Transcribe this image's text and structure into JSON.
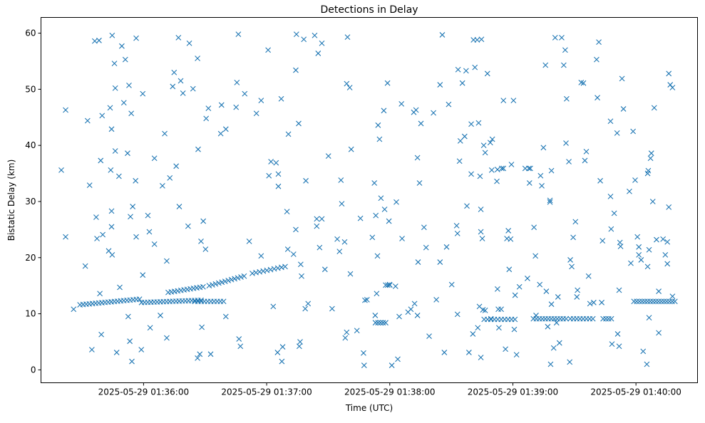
{
  "chart_data": {
    "type": "scatter",
    "title": "Detections in Delay",
    "xlabel": "Time (UTC)",
    "ylabel": "Bistatic Delay (km)",
    "x_unit": "seconds after 2025-05-29 01:35:00",
    "xlim": [
      10,
      330
    ],
    "ylim": [
      -2.3,
      62.8
    ],
    "grid": false,
    "marker": "x",
    "color": "#1f77b4",
    "xticks": [
      {
        "value": 60,
        "label": "2025-05-29 01:36:00"
      },
      {
        "value": 120,
        "label": "2025-05-29 01:37:00"
      },
      {
        "value": 180,
        "label": "2025-05-29 01:38:00"
      },
      {
        "value": 240,
        "label": "2025-05-29 01:39:00"
      },
      {
        "value": 300,
        "label": "2025-05-29 01:40:00"
      }
    ],
    "yticks": [
      {
        "value": 0,
        "label": "0"
      },
      {
        "value": 10,
        "label": "10"
      },
      {
        "value": 20,
        "label": "20"
      },
      {
        "value": 30,
        "label": "30"
      },
      {
        "value": 40,
        "label": "40"
      },
      {
        "value": 50,
        "label": "50"
      },
      {
        "value": 60,
        "label": "60"
      }
    ],
    "points": [
      [
        19.9,
        35.6
      ],
      [
        22.0,
        46.3
      ],
      [
        22.0,
        23.7
      ],
      [
        25.9,
        10.8
      ],
      [
        31.6,
        18.5
      ],
      [
        32.7,
        44.4
      ],
      [
        33.7,
        32.9
      ],
      [
        34.8,
        3.6
      ],
      [
        36.2,
        58.6
      ],
      [
        36.9,
        27.2
      ],
      [
        37.3,
        23.4
      ],
      [
        38.3,
        58.7
      ],
      [
        38.7,
        13.6
      ],
      [
        39.1,
        37.3
      ],
      [
        39.4,
        6.3
      ],
      [
        39.8,
        45.3
      ],
      [
        40.1,
        24.1
      ],
      [
        43.0,
        21.2
      ],
      [
        43.7,
        46.7
      ],
      [
        44.0,
        35.6
      ],
      [
        44.4,
        42.9
      ],
      [
        44.4,
        28.3
      ],
      [
        44.4,
        25.5
      ],
      [
        44.7,
        20.5
      ],
      [
        44.7,
        59.6
      ],
      [
        45.8,
        54.6
      ],
      [
        46.2,
        50.2
      ],
      [
        46.2,
        39.0
      ],
      [
        46.9,
        3.1
      ],
      [
        48.0,
        34.5
      ],
      [
        48.4,
        14.7
      ],
      [
        49.4,
        57.7
      ],
      [
        50.4,
        47.6
      ],
      [
        51.1,
        55.3
      ],
      [
        52.2,
        38.6
      ],
      [
        52.5,
        9.5
      ],
      [
        52.9,
        50.7
      ],
      [
        53.3,
        5.1
      ],
      [
        53.6,
        27.3
      ],
      [
        54.0,
        45.7
      ],
      [
        54.3,
        1.5
      ],
      [
        54.7,
        29.1
      ],
      [
        56.1,
        33.7
      ],
      [
        56.4,
        59.1
      ],
      [
        56.4,
        23.7
      ],
      [
        58.9,
        3.6
      ],
      [
        59.6,
        16.9
      ],
      [
        59.6,
        49.2
      ],
      [
        62.1,
        27.5
      ],
      [
        62.8,
        24.6
      ],
      [
        63.2,
        7.5
      ],
      [
        65.3,
        37.7
      ],
      [
        65.3,
        22.4
      ],
      [
        68.2,
        9.7
      ],
      [
        69.2,
        32.8
      ],
      [
        70.3,
        42.1
      ],
      [
        71.3,
        5.7
      ],
      [
        71.3,
        19.4
      ],
      [
        72.8,
        34.2
      ],
      [
        74.2,
        50.5
      ],
      [
        74.9,
        53.0
      ],
      [
        75.9,
        36.3
      ],
      [
        77.0,
        59.2
      ],
      [
        77.4,
        29.1
      ],
      [
        78.1,
        51.5
      ],
      [
        79.2,
        49.3
      ],
      [
        81.7,
        25.6
      ],
      [
        82.3,
        58.2
      ],
      [
        84.1,
        50.1
      ],
      [
        86.3,
        55.5
      ],
      [
        86.6,
        39.3
      ],
      [
        86.3,
        2.1
      ],
      [
        87.4,
        2.8
      ],
      [
        88.0,
        22.9
      ],
      [
        88.4,
        7.6
      ],
      [
        89.1,
        26.5
      ],
      [
        90.2,
        21.5
      ],
      [
        90.5,
        44.8
      ],
      [
        91.6,
        46.6
      ],
      [
        92.7,
        2.8
      ],
      [
        97.6,
        42.1
      ],
      [
        98.0,
        47.2
      ],
      [
        100.1,
        42.9
      ],
      [
        100.1,
        9.5
      ],
      [
        105.1,
        46.8
      ],
      [
        105.5,
        51.2
      ],
      [
        106.2,
        59.8
      ],
      [
        106.5,
        5.5
      ],
      [
        107.2,
        4.2
      ],
      [
        109.3,
        49.2
      ],
      [
        111.5,
        22.9
      ],
      [
        115.0,
        45.7
      ],
      [
        117.3,
        48.0
      ],
      [
        117.3,
        20.3
      ],
      [
        120.7,
        57.0
      ],
      [
        121.1,
        34.6
      ],
      [
        122.1,
        37.1
      ],
      [
        123.2,
        11.3
      ],
      [
        124.6,
        36.9
      ],
      [
        125.3,
        3.1
      ],
      [
        125.7,
        34.9
      ],
      [
        125.7,
        32.7
      ],
      [
        127.1,
        48.3
      ],
      [
        127.4,
        1.5
      ],
      [
        127.8,
        4.1
      ],
      [
        129.9,
        28.2
      ],
      [
        130.3,
        21.5
      ],
      [
        130.6,
        42.0
      ],
      [
        133.1,
        20.6
      ],
      [
        134.2,
        25.0
      ],
      [
        134.2,
        53.4
      ],
      [
        134.5,
        59.8
      ],
      [
        135.6,
        43.9
      ],
      [
        135.9,
        4.2
      ],
      [
        136.3,
        5.0
      ],
      [
        136.6,
        18.8
      ],
      [
        137.0,
        16.7
      ],
      [
        138.1,
        58.9
      ],
      [
        138.8,
        10.9
      ],
      [
        139.1,
        33.7
      ],
      [
        140.2,
        11.8
      ],
      [
        143.4,
        59.6
      ],
      [
        144.4,
        25.6
      ],
      [
        144.4,
        26.9
      ],
      [
        145.1,
        56.4
      ],
      [
        145.8,
        21.8
      ],
      [
        146.9,
        58.2
      ],
      [
        146.9,
        26.9
      ],
      [
        148.4,
        17.9
      ],
      [
        150.1,
        38.1
      ],
      [
        151.9,
        10.9
      ],
      [
        154.4,
        23.3
      ],
      [
        155.5,
        21.1
      ],
      [
        156.2,
        33.8
      ],
      [
        156.6,
        29.6
      ],
      [
        158.0,
        22.8
      ],
      [
        158.3,
        5.7
      ],
      [
        159.0,
        6.7
      ],
      [
        159.4,
        59.3
      ],
      [
        159.0,
        51.0
      ],
      [
        160.5,
        50.3
      ],
      [
        160.8,
        17.1
      ],
      [
        161.2,
        39.3
      ],
      [
        164.0,
        7.0
      ],
      [
        165.7,
        27.0
      ],
      [
        167.2,
        3.0
      ],
      [
        167.5,
        0.8
      ],
      [
        167.9,
        12.4
      ],
      [
        168.9,
        12.5
      ],
      [
        171.5,
        23.6
      ],
      [
        172.5,
        33.3
      ],
      [
        172.9,
        9.7
      ],
      [
        173.2,
        27.5
      ],
      [
        173.6,
        13.6
      ],
      [
        174.0,
        20.3
      ],
      [
        174.3,
        43.6
      ],
      [
        175.0,
        41.1
      ],
      [
        175.7,
        30.6
      ],
      [
        177.1,
        46.2
      ],
      [
        177.5,
        28.6
      ],
      [
        178.9,
        51.1
      ],
      [
        179.6,
        26.5
      ],
      [
        179.9,
        15.2
      ],
      [
        181.0,
        0.8
      ],
      [
        182.8,
        14.9
      ],
      [
        183.2,
        29.9
      ],
      [
        183.9,
        1.9
      ],
      [
        184.6,
        9.5
      ],
      [
        185.7,
        47.4
      ],
      [
        186.0,
        23.4
      ],
      [
        188.9,
        10.3
      ],
      [
        190.3,
        10.8
      ],
      [
        191.7,
        45.9
      ],
      [
        192.1,
        11.8
      ],
      [
        192.8,
        46.3
      ],
      [
        193.5,
        37.8
      ],
      [
        193.5,
        9.7
      ],
      [
        193.8,
        19.2
      ],
      [
        194.5,
        33.3
      ],
      [
        195.2,
        43.9
      ],
      [
        196.7,
        25.4
      ],
      [
        197.7,
        21.8
      ],
      [
        199.2,
        6.0
      ],
      [
        201.3,
        45.8
      ],
      [
        202.7,
        12.5
      ],
      [
        204.5,
        50.8
      ],
      [
        204.5,
        19.2
      ],
      [
        205.6,
        59.7
      ],
      [
        206.6,
        3.1
      ],
      [
        207.7,
        21.9
      ],
      [
        208.7,
        47.3
      ],
      [
        210.2,
        15.2
      ],
      [
        212.6,
        25.7
      ],
      [
        213.0,
        24.3
      ],
      [
        213.0,
        9.9
      ],
      [
        213.3,
        53.5
      ],
      [
        214.0,
        37.2
      ],
      [
        214.4,
        40.8
      ],
      [
        215.4,
        51.1
      ],
      [
        216.5,
        41.6
      ],
      [
        217.2,
        53.3
      ],
      [
        217.6,
        29.2
      ],
      [
        218.6,
        3.1
      ],
      [
        219.7,
        34.9
      ],
      [
        219.7,
        43.8
      ],
      [
        220.5,
        6.4
      ],
      [
        220.8,
        58.8
      ],
      [
        221.5,
        53.9
      ],
      [
        222.6,
        58.8
      ],
      [
        222.9,
        7.5
      ],
      [
        223.3,
        44.0
      ],
      [
        223.7,
        11.3
      ],
      [
        224.0,
        34.5
      ],
      [
        224.4,
        28.6
      ],
      [
        224.4,
        2.2
      ],
      [
        224.4,
        24.6
      ],
      [
        224.7,
        58.9
      ],
      [
        225.1,
        23.4
      ],
      [
        225.4,
        10.7
      ],
      [
        225.8,
        40.0
      ],
      [
        226.5,
        38.7
      ],
      [
        226.5,
        10.6
      ],
      [
        227.6,
        52.8
      ],
      [
        229.0,
        40.5
      ],
      [
        229.3,
        9.1
      ],
      [
        229.7,
        35.6
      ],
      [
        230.0,
        41.1
      ],
      [
        232.2,
        33.6
      ],
      [
        232.5,
        14.4
      ],
      [
        232.5,
        35.7
      ],
      [
        232.9,
        10.8
      ],
      [
        233.2,
        7.5
      ],
      [
        234.3,
        10.8
      ],
      [
        234.6,
        35.9
      ],
      [
        235.4,
        48.0
      ],
      [
        235.4,
        35.9
      ],
      [
        236.4,
        3.7
      ],
      [
        237.1,
        23.4
      ],
      [
        237.8,
        24.8
      ],
      [
        238.2,
        17.9
      ],
      [
        238.9,
        23.3
      ],
      [
        239.3,
        36.6
      ],
      [
        240.3,
        48.0
      ],
      [
        240.7,
        7.2
      ],
      [
        241.1,
        13.3
      ],
      [
        241.8,
        2.7
      ],
      [
        243.2,
        14.8
      ],
      [
        246.0,
        35.9
      ],
      [
        247.1,
        16.3
      ],
      [
        247.8,
        35.9
      ],
      [
        248.1,
        33.3
      ],
      [
        248.5,
        35.9
      ],
      [
        250.3,
        25.4
      ],
      [
        251.0,
        20.3
      ],
      [
        251.3,
        9.7
      ],
      [
        253.1,
        15.2
      ],
      [
        253.5,
        34.6
      ],
      [
        254.1,
        32.8
      ],
      [
        254.9,
        39.6
      ],
      [
        255.9,
        54.3
      ],
      [
        256.3,
        14.0
      ],
      [
        257.0,
        7.7
      ],
      [
        258.1,
        29.9
      ],
      [
        258.1,
        30.2
      ],
      [
        258.4,
        1.0
      ],
      [
        258.8,
        11.7
      ],
      [
        258.8,
        35.5
      ],
      [
        259.9,
        3.9
      ],
      [
        260.6,
        59.2
      ],
      [
        261.3,
        8.4
      ],
      [
        262.0,
        13.0
      ],
      [
        262.7,
        4.8
      ],
      [
        263.8,
        59.2
      ],
      [
        264.8,
        54.3
      ],
      [
        265.5,
        57.0
      ],
      [
        265.9,
        40.4
      ],
      [
        266.2,
        48.3
      ],
      [
        267.3,
        37.1
      ],
      [
        267.7,
        1.4
      ],
      [
        268.0,
        19.6
      ],
      [
        268.7,
        18.4
      ],
      [
        269.4,
        23.6
      ],
      [
        270.5,
        26.4
      ],
      [
        271.5,
        14.2
      ],
      [
        271.2,
        13.0
      ],
      [
        273.3,
        51.2
      ],
      [
        274.4,
        51.1
      ],
      [
        275.1,
        37.3
      ],
      [
        275.8,
        38.9
      ],
      [
        276.9,
        16.7
      ],
      [
        277.6,
        11.8
      ],
      [
        279.4,
        12.0
      ],
      [
        280.8,
        55.3
      ],
      [
        281.2,
        48.5
      ],
      [
        281.9,
        58.4
      ],
      [
        282.6,
        33.7
      ],
      [
        283.3,
        12.0
      ],
      [
        283.7,
        23.0
      ],
      [
        287.6,
        44.3
      ],
      [
        287.6,
        30.9
      ],
      [
        287.9,
        25.1
      ],
      [
        288.3,
        4.6
      ],
      [
        289.4,
        27.9
      ],
      [
        290.8,
        42.2
      ],
      [
        291.1,
        6.4
      ],
      [
        291.8,
        14.2
      ],
      [
        291.8,
        4.2
      ],
      [
        292.2,
        22.7
      ],
      [
        292.5,
        22.0
      ],
      [
        293.2,
        51.9
      ],
      [
        293.9,
        46.5
      ],
      [
        296.8,
        31.8
      ],
      [
        297.5,
        19.0
      ],
      [
        298.6,
        42.5
      ],
      [
        299.6,
        33.8
      ],
      [
        300.7,
        23.7
      ],
      [
        301.4,
        20.5
      ],
      [
        301.4,
        21.9
      ],
      [
        302.5,
        19.6
      ],
      [
        303.5,
        3.3
      ],
      [
        305.3,
        1.0
      ],
      [
        306.4,
        21.4
      ],
      [
        305.7,
        18.4
      ],
      [
        305.7,
        35.0
      ],
      [
        306.0,
        35.5
      ],
      [
        306.4,
        9.3
      ],
      [
        307.1,
        37.7
      ],
      [
        307.5,
        38.6
      ],
      [
        308.2,
        30.0
      ],
      [
        308.9,
        46.7
      ],
      [
        310.0,
        23.2
      ],
      [
        311.1,
        6.6
      ],
      [
        311.1,
        14.0
      ],
      [
        313.2,
        23.3
      ],
      [
        314.3,
        20.5
      ],
      [
        315.3,
        18.9
      ],
      [
        315.3,
        22.8
      ],
      [
        316.0,
        52.8
      ],
      [
        316.0,
        29.0
      ],
      [
        316.7,
        50.8
      ],
      [
        317.8,
        50.3
      ],
      [
        317.8,
        13.1
      ]
    ],
    "tracks": [
      {
        "t": [
          29,
          58
        ],
        "km": [
          11.6,
          12.6
        ],
        "n": 20
      },
      {
        "t": [
          59,
          88
        ],
        "km": [
          12.0,
          12.4
        ],
        "n": 20
      },
      {
        "t": [
          72,
          89
        ],
        "km": [
          13.8,
          14.8
        ],
        "n": 12
      },
      {
        "t": [
          85,
          99
        ],
        "km": [
          12.2,
          12.2
        ],
        "n": 10
      },
      {
        "t": [
          92,
          109
        ],
        "km": [
          15.0,
          16.7
        ],
        "n": 12
      },
      {
        "t": [
          113,
          129
        ],
        "km": [
          17.2,
          18.4
        ],
        "n": 10
      },
      {
        "t": [
          173,
          178
        ],
        "km": [
          8.4,
          8.4
        ],
        "n": 5
      },
      {
        "t": [
          178,
          180
        ],
        "km": [
          15.1,
          15.1
        ],
        "n": 3
      },
      {
        "t": [
          226,
          241
        ],
        "km": [
          9.0,
          9.0
        ],
        "n": 10
      },
      {
        "t": [
          250,
          266
        ],
        "km": [
          9.1,
          9.1
        ],
        "n": 12
      },
      {
        "t": [
          268,
          279
        ],
        "km": [
          9.1,
          9.1
        ],
        "n": 8
      },
      {
        "t": [
          284,
          288
        ],
        "km": [
          9.1,
          9.1
        ],
        "n": 4
      },
      {
        "t": [
          299,
          319
        ],
        "km": [
          12.2,
          12.2
        ],
        "n": 16
      }
    ]
  }
}
